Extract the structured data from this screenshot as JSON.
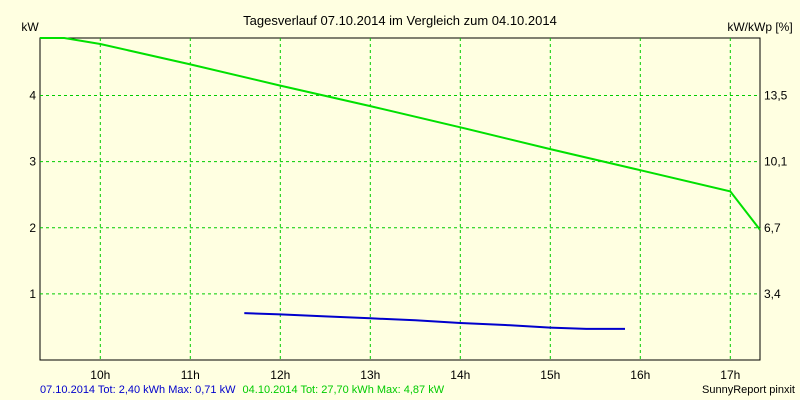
{
  "chart_data": {
    "type": "line",
    "title": "Tagesverlauf 07.10.2014 im Vergleich zum 04.10.2014",
    "ylabel_left": "kW",
    "ylabel_right": "kW/kWp [%]",
    "x_unit": "h",
    "xlim": [
      9.33,
      17.33
    ],
    "x_ticks": [
      "10h",
      "11h",
      "12h",
      "13h",
      "14h",
      "15h",
      "16h",
      "17h"
    ],
    "ylim_left": [
      0,
      4.87
    ],
    "y_ticks_left": [
      "1",
      "2",
      "3",
      "4"
    ],
    "y_ticks_right": [
      "3,4",
      "6,7",
      "10,1",
      "13,5"
    ],
    "grid": true,
    "series": [
      {
        "name": "04.10.2014",
        "color": "#00e000",
        "x": [
          9.33,
          9.6,
          10.0,
          11.0,
          12.0,
          13.0,
          14.0,
          15.0,
          16.0,
          17.0,
          17.33
        ],
        "y": [
          4.87,
          4.87,
          4.78,
          4.47,
          4.15,
          3.84,
          3.52,
          3.19,
          2.87,
          2.55,
          1.97
        ]
      },
      {
        "name": "07.10.2014",
        "color": "#0000cc",
        "x": [
          11.6,
          12.0,
          12.5,
          13.0,
          13.5,
          14.0,
          14.5,
          15.0,
          15.4,
          15.83
        ],
        "y": [
          0.71,
          0.69,
          0.66,
          0.63,
          0.6,
          0.56,
          0.53,
          0.49,
          0.47,
          0.47
        ]
      }
    ],
    "footer": {
      "series1_text": "07.10.2014 Tot: 2,40 kWh Max: 0,71 kW",
      "series2_text": "04.10.2014 Tot: 27,70 kWh Max: 4,87 kW",
      "brand": "SunnyReport pinxit"
    }
  },
  "colors": {
    "background": "#ffffe1",
    "grid": "#00cc00",
    "series1": "#0000cc",
    "series2": "#00e000"
  }
}
